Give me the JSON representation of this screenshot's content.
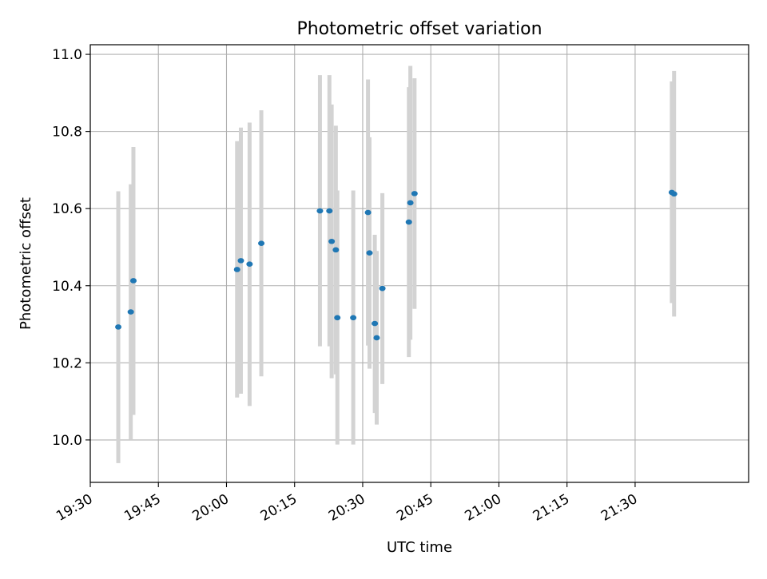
{
  "chart_data": {
    "type": "scatter",
    "title": "Photometric offset variation",
    "xlabel": "UTC time",
    "ylabel": "Photometric offset",
    "x_is_time": true,
    "xlim": [
      "19:30",
      "21:55"
    ],
    "ylim": [
      9.89,
      11.025
    ],
    "x_ticks": [
      "19:30",
      "19:45",
      "20:00",
      "20:15",
      "20:30",
      "20:45",
      "21:00",
      "21:15",
      "21:30"
    ],
    "y_ticks": [
      "10.0",
      "10.2",
      "10.4",
      "10.6",
      "10.8",
      "11.0"
    ],
    "grid": true,
    "colors": {
      "points": "#1f77b4",
      "errorbars": "#d3d3d3",
      "grid": "#b0b0b0"
    },
    "points": [
      {
        "x": "19:36:10",
        "y": 10.293,
        "ylow": 9.94,
        "yhigh": 10.645
      },
      {
        "x": "19:38:55",
        "y": 10.332,
        "ylow": 10.0,
        "yhigh": 10.663
      },
      {
        "x": "19:39:30",
        "y": 10.413,
        "ylow": 10.065,
        "yhigh": 10.76
      },
      {
        "x": "20:02:20",
        "y": 10.442,
        "ylow": 10.11,
        "yhigh": 10.775
      },
      {
        "x": "20:03:10",
        "y": 10.465,
        "ylow": 10.12,
        "yhigh": 10.81
      },
      {
        "x": "20:05:05",
        "y": 10.456,
        "ylow": 10.088,
        "yhigh": 10.823
      },
      {
        "x": "20:07:40",
        "y": 10.51,
        "ylow": 10.165,
        "yhigh": 10.855
      },
      {
        "x": "20:20:35",
        "y": 10.594,
        "ylow": 10.243,
        "yhigh": 10.946
      },
      {
        "x": "20:22:40",
        "y": 10.594,
        "ylow": 10.243,
        "yhigh": 10.946
      },
      {
        "x": "20:23:10",
        "y": 10.515,
        "ylow": 10.16,
        "yhigh": 10.87
      },
      {
        "x": "20:24:05",
        "y": 10.493,
        "ylow": 10.17,
        "yhigh": 10.815
      },
      {
        "x": "20:24:25",
        "y": 10.317,
        "ylow": 9.988,
        "yhigh": 10.647
      },
      {
        "x": "20:27:55",
        "y": 10.317,
        "ylow": 9.988,
        "yhigh": 10.647
      },
      {
        "x": "20:31:10",
        "y": 10.59,
        "ylow": 10.245,
        "yhigh": 10.935
      },
      {
        "x": "20:31:30",
        "y": 10.485,
        "ylow": 10.185,
        "yhigh": 10.785
      },
      {
        "x": "20:32:40",
        "y": 10.302,
        "ylow": 10.07,
        "yhigh": 10.532
      },
      {
        "x": "20:33:05",
        "y": 10.265,
        "ylow": 10.04,
        "yhigh": 10.49
      },
      {
        "x": "20:34:20",
        "y": 10.393,
        "ylow": 10.145,
        "yhigh": 10.64
      },
      {
        "x": "20:40:10",
        "y": 10.565,
        "ylow": 10.215,
        "yhigh": 10.915
      },
      {
        "x": "20:40:30",
        "y": 10.615,
        "ylow": 10.26,
        "yhigh": 10.97
      },
      {
        "x": "20:41:25",
        "y": 10.639,
        "ylow": 10.34,
        "yhigh": 10.938
      },
      {
        "x": "21:38:05",
        "y": 10.642,
        "ylow": 10.355,
        "yhigh": 10.93
      },
      {
        "x": "21:38:35",
        "y": 10.638,
        "ylow": 10.32,
        "yhigh": 10.957
      }
    ]
  }
}
